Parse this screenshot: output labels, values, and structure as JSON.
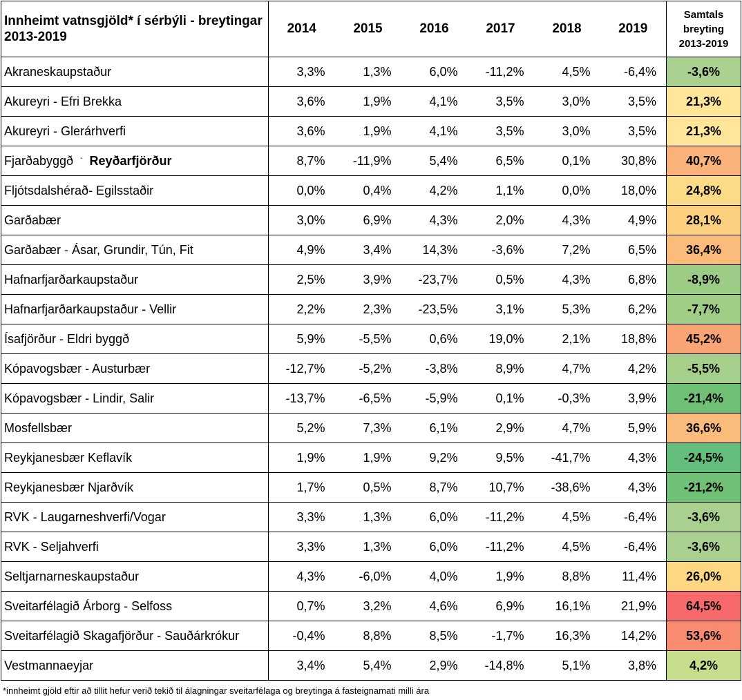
{
  "table": {
    "title": "Innheimt vatnsgjöld* í sérbýli - breytingar 2013-2019",
    "years": [
      "2014",
      "2015",
      "2016",
      "2017",
      "2018",
      "2019"
    ],
    "total_header": [
      "Samtals",
      "breyting",
      "2013-2019"
    ],
    "rows": [
      {
        "name": "Akraneskaupstaður",
        "values": [
          "3,3%",
          "1,3%",
          "6,0%",
          "-11,2%",
          "4,5%",
          "-6,4%"
        ],
        "total": "-3,6%",
        "color": "#a9d08e"
      },
      {
        "name": "Akureyri - Efri Brekka",
        "values": [
          "3,6%",
          "1,9%",
          "4,1%",
          "3,5%",
          "3,0%",
          "3,5%"
        ],
        "total": "21,3%",
        "color": "#ffe699"
      },
      {
        "name": "Akureyri - Glerárhverfi",
        "values": [
          "3,6%",
          "1,9%",
          "4,1%",
          "3,5%",
          "3,0%",
          "3,5%"
        ],
        "total": "21,3%",
        "color": "#ffe699"
      },
      {
        "name": "Fjarðabyggð",
        "name_bold": "Reyðarfjörður",
        "values": [
          "8,7%",
          "-11,9%",
          "5,4%",
          "6,5%",
          "0,1%",
          "30,8%"
        ],
        "total": "40,7%",
        "color": "#f8b27a"
      },
      {
        "name": "Fljótsdalshérað- Egilsstaðir",
        "values": [
          "0,0%",
          "0,4%",
          "4,2%",
          "1,1%",
          "0,0%",
          "18,0%"
        ],
        "total": "24,8%",
        "color": "#fddb86"
      },
      {
        "name": "Garðabær",
        "values": [
          "3,0%",
          "6,9%",
          "4,3%",
          "2,0%",
          "4,3%",
          "4,9%"
        ],
        "total": "28,1%",
        "color": "#fdd07f"
      },
      {
        "name": "Garðabær - Ásar, Grundir, Tún, Fit",
        "values": [
          "4,9%",
          "3,4%",
          "14,3%",
          "-3,6%",
          "7,2%",
          "6,5%"
        ],
        "total": "36,4%",
        "color": "#fbbb7a"
      },
      {
        "name": "Hafnarfjarðarkaupstaður",
        "values": [
          "2,5%",
          "3,9%",
          "-23,7%",
          "0,5%",
          "4,3%",
          "6,8%"
        ],
        "total": "-8,9%",
        "color": "#9ccc85"
      },
      {
        "name": "Hafnarfjarðarkaupstaður - Vellir",
        "values": [
          "2,2%",
          "2,3%",
          "-23,5%",
          "3,1%",
          "5,3%",
          "6,2%"
        ],
        "total": "-7,7%",
        "color": "#a0ce87"
      },
      {
        "name": "Ísafjörður - Eldri byggð",
        "values": [
          "5,9%",
          "-5,5%",
          "0,6%",
          "19,0%",
          "2,1%",
          "18,8%"
        ],
        "total": "45,2%",
        "color": "#f8a474"
      },
      {
        "name": "Kópavogsbær  - Austurbær",
        "values": [
          "-12,7%",
          "-5,2%",
          "-3,8%",
          "8,9%",
          "4,7%",
          "4,2%"
        ],
        "total": "-5,5%",
        "color": "#a5cf8a"
      },
      {
        "name": "Kópavogsbær - Lindir, Salir",
        "values": [
          "-13,7%",
          "-6,5%",
          "-5,9%",
          "0,1%",
          "-0,3%",
          "3,9%"
        ],
        "total": "-21,4%",
        "color": "#6fbf74"
      },
      {
        "name": "Mosfellsbær",
        "values": [
          "5,2%",
          "7,3%",
          "6,1%",
          "2,9%",
          "4,7%",
          "5,9%"
        ],
        "total": "36,6%",
        "color": "#fbbb7a"
      },
      {
        "name": "Reykjanesbær Keflavík",
        "values": [
          "1,9%",
          "1,9%",
          "9,2%",
          "9,5%",
          "-41,7%",
          "4,3%"
        ],
        "total": "-24,5%",
        "color": "#63be7b"
      },
      {
        "name": "Reykjanesbær Njarðvík",
        "values": [
          "1,7%",
          "0,5%",
          "8,7%",
          "10,7%",
          "-38,6%",
          "4,3%"
        ],
        "total": "-21,2%",
        "color": "#70c075"
      },
      {
        "name": "RVK - Laugarneshverfi/Vogar",
        "values": [
          "3,3%",
          "1,3%",
          "6,0%",
          "-11,2%",
          "4,5%",
          "-6,4%"
        ],
        "total": "-3,6%",
        "color": "#a9d08e"
      },
      {
        "name": "RVK - Seljahverfi",
        "values": [
          "3,3%",
          "1,3%",
          "6,0%",
          "-11,2%",
          "4,5%",
          "-6,4%"
        ],
        "total": "-3,6%",
        "color": "#a9d08e"
      },
      {
        "name": "Seltjarnarneskaupstaður",
        "values": [
          "4,3%",
          "-6,0%",
          "4,0%",
          "1,9%",
          "8,8%",
          "11,4%"
        ],
        "total": "26,0%",
        "color": "#fdd782"
      },
      {
        "name": "Sveitarfélagið Árborg - Selfoss",
        "values": [
          "0,7%",
          "3,2%",
          "4,6%",
          "6,9%",
          "16,1%",
          "21,9%"
        ],
        "total": "64,5%",
        "color": "#f8696b"
      },
      {
        "name": "Sveitarfélagið Skagafjörður - Sauðárkrókur",
        "values": [
          "-0,4%",
          "8,8%",
          "8,5%",
          "-1,7%",
          "16,3%",
          "14,2%"
        ],
        "total": "53,6%",
        "color": "#f98b70"
      },
      {
        "name": "Vestmannaeyjar",
        "values": [
          "3,4%",
          "5,4%",
          "2,9%",
          "-14,8%",
          "5,1%",
          "3,8%"
        ],
        "total": "4,2%",
        "color": "#c6dd8b"
      }
    ]
  },
  "footnote": "*innheimt gjöld eftir að tillit hefur verið tekið til álagningar sveitarfélaga og breytinga á fasteignamati milli ára"
}
